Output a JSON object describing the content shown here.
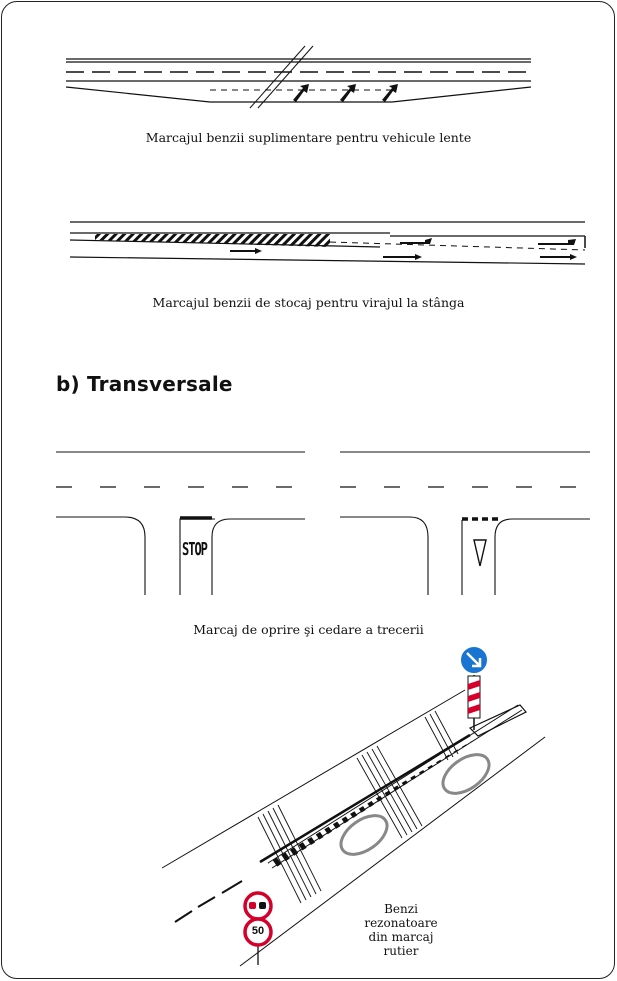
{
  "captions": {
    "slow_lane": "Marcajul benzii suplimentare pentru vehicule lente",
    "left_turn": "Marcajul benzii de stocaj pentru virajul la stânga",
    "stop_yield": "Marcaj de oprire şi cedare a trecerii"
  },
  "section_heading": "b) Transversale",
  "road_text": {
    "stop": "STOP"
  },
  "signs": {
    "speed_limit": "50"
  },
  "rumble_note": [
    "Benzi",
    "rezonatoare",
    "din marcaj rutier"
  ]
}
